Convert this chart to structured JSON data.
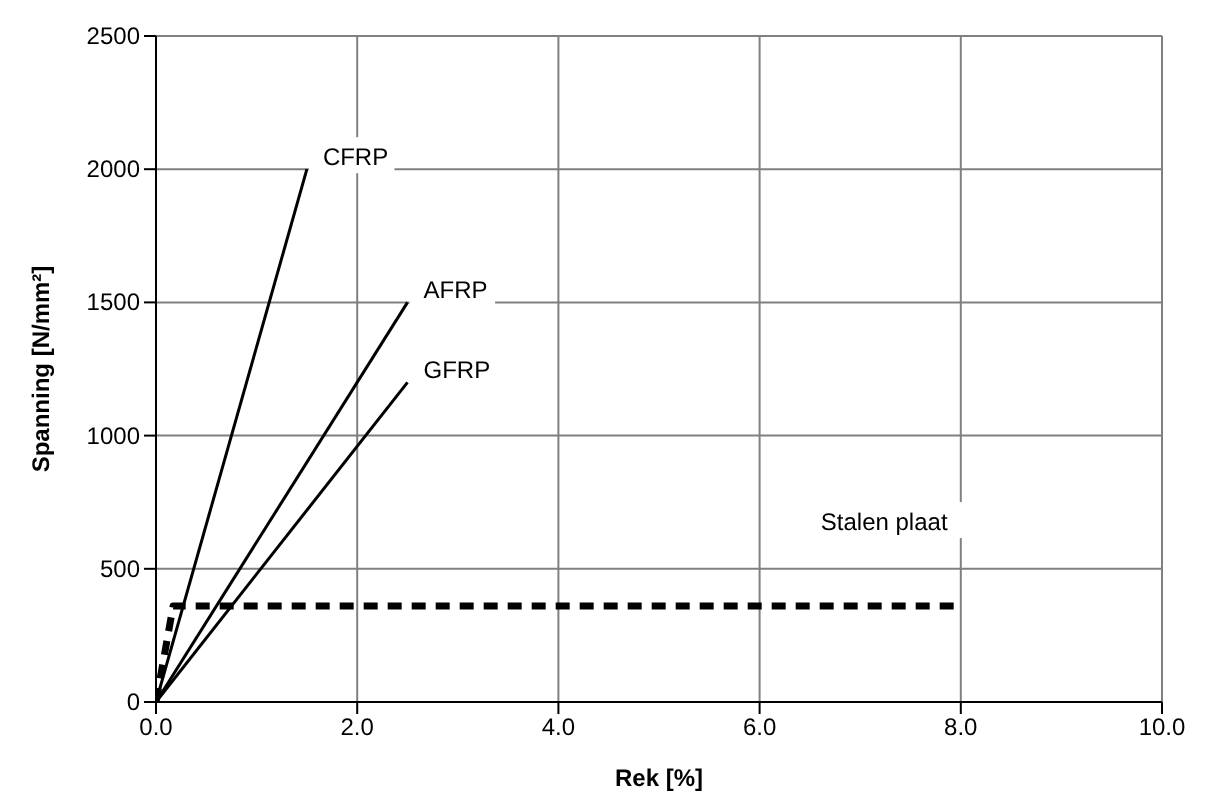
{
  "chart_data": {
    "type": "line",
    "xlabel": "Rek [%]",
    "ylabel": "Spanning [N/mm²]",
    "xlim": [
      0,
      10
    ],
    "ylim": [
      0,
      2500
    ],
    "xticks": [
      {
        "value": 0,
        "label": "0.0"
      },
      {
        "value": 2,
        "label": "2.0"
      },
      {
        "value": 4,
        "label": "4.0"
      },
      {
        "value": 6,
        "label": "6.0"
      },
      {
        "value": 8,
        "label": "8.0"
      },
      {
        "value": 10,
        "label": "10.0"
      }
    ],
    "yticks": [
      0,
      500,
      1000,
      1500,
      2000,
      2500
    ],
    "grid": true,
    "marker": "none",
    "series": [
      {
        "name": "CFRP",
        "color": "#000000",
        "x": [
          0,
          1.5
        ],
        "values": [
          0,
          2000
        ]
      },
      {
        "name": "AFRP",
        "color": "#000000",
        "x": [
          0,
          2.5
        ],
        "values": [
          0,
          1500
        ]
      },
      {
        "name": "GFRP",
        "color": "#000000",
        "x": [
          0,
          2.5
        ],
        "values": [
          0,
          1200
        ]
      },
      {
        "name": "Stalen plaat",
        "color": "#000000",
        "x": [
          0,
          0.17,
          8
        ],
        "values": [
          0,
          360,
          360
        ],
        "line_style": "dashed"
      }
    ]
  }
}
